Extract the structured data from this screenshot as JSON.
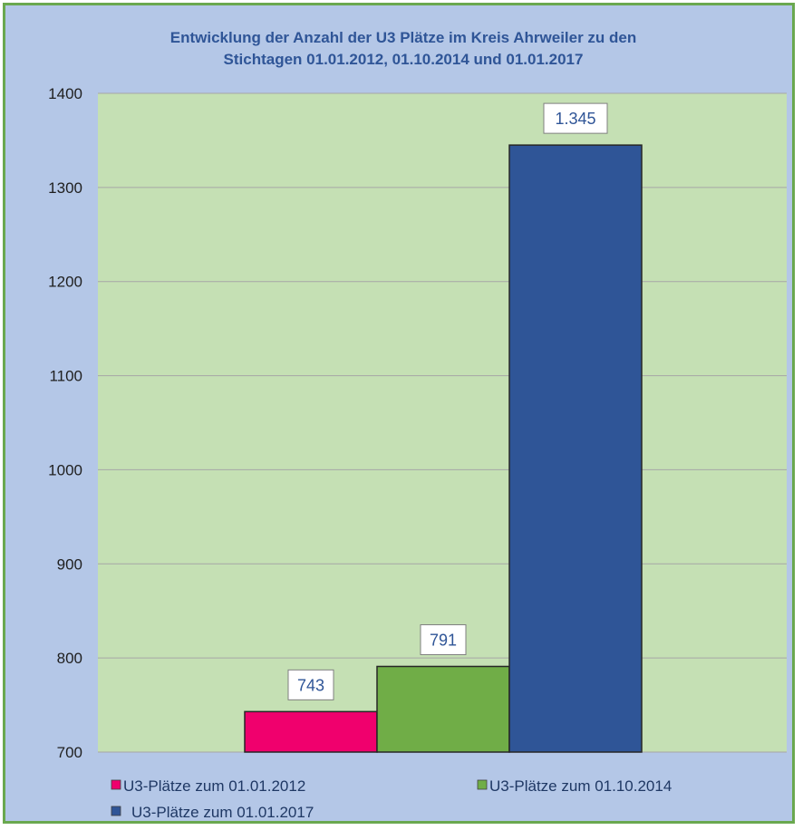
{
  "chart_data": {
    "type": "bar",
    "title_lines": [
      "Entwicklung der Anzahl der U3 Plätze im Kreis Ahrweiler zu den",
      "Stichtagen 01.01.2012, 01.10.2014 und 01.01.2017"
    ],
    "xlabel": "",
    "ylabel": "",
    "ylim": [
      700,
      1400
    ],
    "yticks": [
      700,
      800,
      900,
      1000,
      1100,
      1200,
      1300,
      1400
    ],
    "grid": true,
    "legend_position": "bottom",
    "plot_background": "#c5e0b4",
    "series": [
      {
        "name": "U3-Plätze zum 01.01.2012",
        "value": 743,
        "label": "743",
        "color": "#f0006d"
      },
      {
        "name": "U3-Plätze zum 01.10.2014",
        "value": 791,
        "label": "791",
        "color": "#70ad47"
      },
      {
        "name": "U3-Plätze zum 01.01.2017",
        "value": 1345,
        "label": "1.345",
        "color": "#2f5597"
      }
    ]
  }
}
